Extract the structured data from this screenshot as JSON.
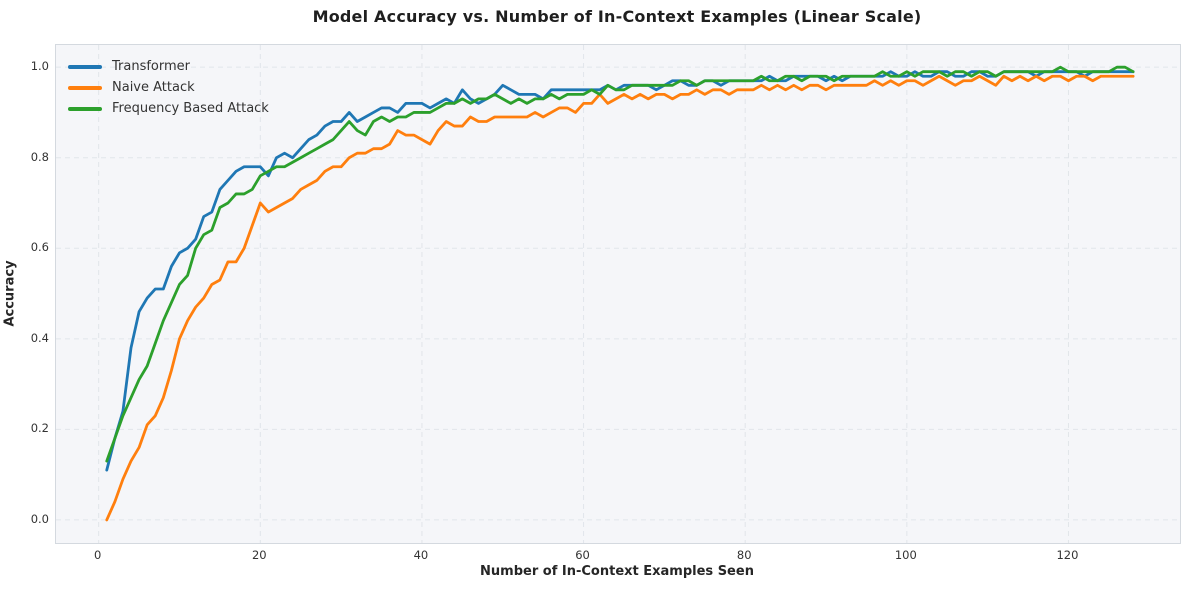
{
  "chart_data": {
    "type": "line",
    "title": "Model Accuracy vs. Number of In-Context Examples (Linear Scale)",
    "xlabel": "Number of In-Context Examples Seen",
    "ylabel": "Accuracy",
    "xlim": [
      -5.28,
      133.8
    ],
    "ylim": [
      -0.051,
      1.049
    ],
    "xticks": [
      0,
      20,
      40,
      60,
      80,
      100,
      120
    ],
    "yticks": [
      0.0,
      0.2,
      0.4,
      0.6,
      0.8,
      1.0
    ],
    "grid": "dashed",
    "legend_position": "upper-left",
    "x_start": 1,
    "x_step": 1,
    "series": [
      {
        "name": "Transformer",
        "color": "#1f77b4",
        "values": [
          0.11,
          0.18,
          0.24,
          0.38,
          0.46,
          0.49,
          0.51,
          0.51,
          0.56,
          0.59,
          0.6,
          0.62,
          0.67,
          0.68,
          0.73,
          0.75,
          0.77,
          0.78,
          0.78,
          0.78,
          0.76,
          0.8,
          0.81,
          0.8,
          0.82,
          0.84,
          0.85,
          0.87,
          0.88,
          0.88,
          0.9,
          0.88,
          0.89,
          0.9,
          0.91,
          0.91,
          0.9,
          0.92,
          0.92,
          0.92,
          0.91,
          0.92,
          0.93,
          0.92,
          0.95,
          0.93,
          0.92,
          0.93,
          0.94,
          0.96,
          0.95,
          0.94,
          0.94,
          0.94,
          0.93,
          0.95,
          0.95,
          0.95,
          0.95,
          0.95,
          0.95,
          0.95,
          0.96,
          0.95,
          0.96,
          0.96,
          0.96,
          0.96,
          0.95,
          0.96,
          0.97,
          0.97,
          0.96,
          0.96,
          0.97,
          0.97,
          0.96,
          0.97,
          0.97,
          0.97,
          0.97,
          0.97,
          0.98,
          0.97,
          0.97,
          0.98,
          0.98,
          0.98,
          0.98,
          0.97,
          0.98,
          0.97,
          0.98,
          0.98,
          0.98,
          0.98,
          0.98,
          0.99,
          0.98,
          0.98,
          0.99,
          0.98,
          0.98,
          0.99,
          0.99,
          0.98,
          0.98,
          0.99,
          0.99,
          0.98,
          0.98,
          0.99,
          0.99,
          0.99,
          0.99,
          0.98,
          0.99,
          0.99,
          0.99,
          0.99,
          0.99,
          0.98,
          0.99,
          0.99,
          0.99,
          0.99,
          0.99,
          0.99
        ]
      },
      {
        "name": "Naive Attack",
        "color": "#ff7f0e",
        "values": [
          0.0,
          0.04,
          0.09,
          0.13,
          0.16,
          0.21,
          0.23,
          0.27,
          0.33,
          0.4,
          0.44,
          0.47,
          0.49,
          0.52,
          0.53,
          0.57,
          0.57,
          0.6,
          0.65,
          0.7,
          0.68,
          0.69,
          0.7,
          0.71,
          0.73,
          0.74,
          0.75,
          0.77,
          0.78,
          0.78,
          0.8,
          0.81,
          0.81,
          0.82,
          0.82,
          0.83,
          0.86,
          0.85,
          0.85,
          0.84,
          0.83,
          0.86,
          0.88,
          0.87,
          0.87,
          0.89,
          0.88,
          0.88,
          0.89,
          0.89,
          0.89,
          0.89,
          0.89,
          0.9,
          0.89,
          0.9,
          0.91,
          0.91,
          0.9,
          0.92,
          0.92,
          0.94,
          0.92,
          0.93,
          0.94,
          0.93,
          0.94,
          0.93,
          0.94,
          0.94,
          0.93,
          0.94,
          0.94,
          0.95,
          0.94,
          0.95,
          0.95,
          0.94,
          0.95,
          0.95,
          0.95,
          0.96,
          0.95,
          0.96,
          0.95,
          0.96,
          0.95,
          0.96,
          0.96,
          0.95,
          0.96,
          0.96,
          0.96,
          0.96,
          0.96,
          0.97,
          0.96,
          0.97,
          0.96,
          0.97,
          0.97,
          0.96,
          0.97,
          0.98,
          0.97,
          0.96,
          0.97,
          0.97,
          0.98,
          0.97,
          0.96,
          0.98,
          0.97,
          0.98,
          0.97,
          0.98,
          0.97,
          0.98,
          0.98,
          0.97,
          0.98,
          0.98,
          0.97,
          0.98,
          0.98,
          0.98,
          0.98,
          0.98
        ]
      },
      {
        "name": "Frequency Based Attack",
        "color": "#2ca02c",
        "values": [
          0.13,
          0.18,
          0.23,
          0.27,
          0.31,
          0.34,
          0.39,
          0.44,
          0.48,
          0.52,
          0.54,
          0.6,
          0.63,
          0.64,
          0.69,
          0.7,
          0.72,
          0.72,
          0.73,
          0.76,
          0.77,
          0.78,
          0.78,
          0.79,
          0.8,
          0.81,
          0.82,
          0.83,
          0.84,
          0.86,
          0.88,
          0.86,
          0.85,
          0.88,
          0.89,
          0.88,
          0.89,
          0.89,
          0.9,
          0.9,
          0.9,
          0.91,
          0.92,
          0.92,
          0.93,
          0.92,
          0.93,
          0.93,
          0.94,
          0.93,
          0.92,
          0.93,
          0.92,
          0.93,
          0.93,
          0.94,
          0.93,
          0.94,
          0.94,
          0.94,
          0.95,
          0.94,
          0.96,
          0.95,
          0.95,
          0.96,
          0.96,
          0.96,
          0.96,
          0.96,
          0.96,
          0.97,
          0.97,
          0.96,
          0.97,
          0.97,
          0.97,
          0.97,
          0.97,
          0.97,
          0.97,
          0.98,
          0.97,
          0.97,
          0.98,
          0.98,
          0.97,
          0.98,
          0.98,
          0.98,
          0.97,
          0.98,
          0.98,
          0.98,
          0.98,
          0.98,
          0.99,
          0.98,
          0.98,
          0.99,
          0.98,
          0.99,
          0.99,
          0.99,
          0.98,
          0.99,
          0.99,
          0.98,
          0.99,
          0.99,
          0.98,
          0.99,
          0.99,
          0.99,
          0.99,
          0.99,
          0.99,
          0.99,
          1.0,
          0.99,
          0.99,
          0.99,
          0.99,
          0.99,
          0.99,
          1.0,
          1.0,
          0.99
        ]
      }
    ]
  },
  "colors": {
    "plot_background": "#f5f6f9",
    "grid_line": "#e1e5ea",
    "plot_border": "#d4d9df",
    "title_text": "#1f1f1f",
    "tick_text": "#333333"
  },
  "layout": {
    "line_width": 2.8,
    "ytick_decimals": 1
  }
}
